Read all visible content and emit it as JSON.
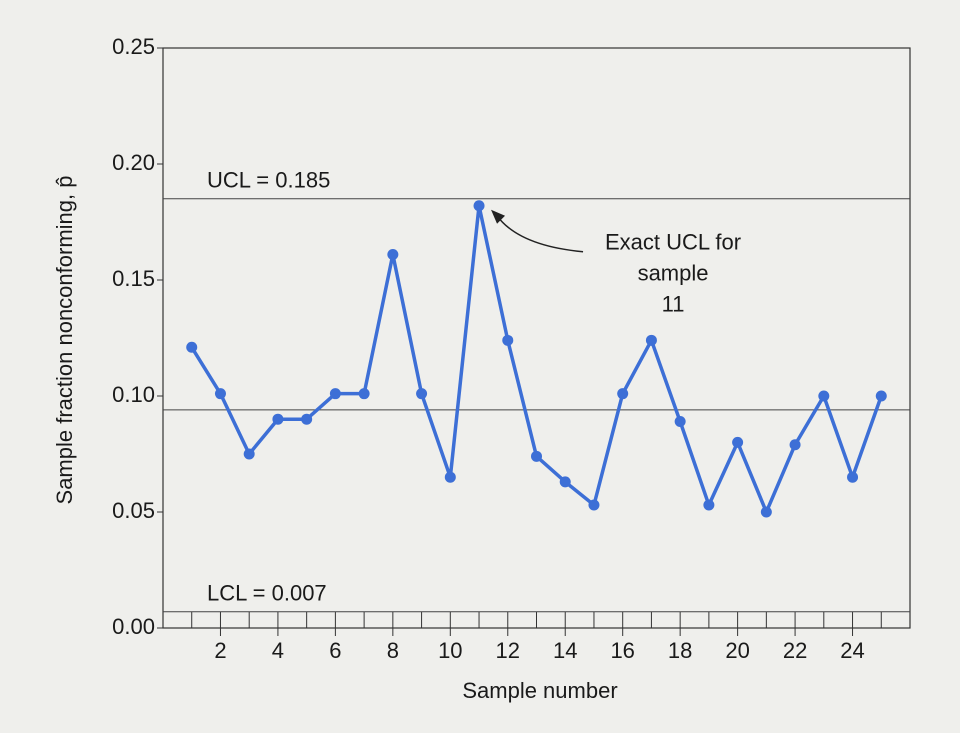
{
  "chart_data": {
    "type": "line",
    "x_label": "Sample number",
    "y_label": "Sample fraction nonconforming, p̂",
    "x": [
      1,
      2,
      3,
      4,
      5,
      6,
      7,
      8,
      9,
      10,
      11,
      12,
      13,
      14,
      15,
      16,
      17,
      18,
      19,
      20,
      21,
      22,
      23,
      24,
      25
    ],
    "series": [
      {
        "color": "#3d6fd6",
        "values": [
          0.121,
          0.101,
          0.075,
          0.09,
          0.09,
          0.101,
          0.101,
          0.161,
          0.101,
          0.065,
          0.182,
          0.124,
          0.074,
          0.063,
          0.053,
          0.101,
          0.124,
          0.089,
          0.053,
          0.08,
          0.05,
          0.079,
          0.1,
          0.065,
          0.1
        ]
      }
    ],
    "xlim": [
      0,
      26
    ],
    "xticks": [
      2,
      4,
      6,
      8,
      10,
      12,
      14,
      16,
      18,
      20,
      22,
      24
    ],
    "xminorticks": [
      1,
      2,
      3,
      4,
      5,
      6,
      7,
      8,
      9,
      10,
      11,
      12,
      13,
      14,
      15,
      16,
      17,
      18,
      19,
      20,
      21,
      22,
      23,
      24,
      25
    ],
    "ylim": [
      0,
      0.25
    ],
    "yticks": [
      {
        "value": 0,
        "label": "0.00"
      },
      0.05,
      {
        "value": 0.1,
        "label": "0.10"
      },
      0.15,
      {
        "value": 0.2,
        "label": "0.20"
      },
      0.25
    ],
    "control_lines": [
      {
        "value": 0.185,
        "label": "UCL = 0.185"
      },
      {
        "value": 0.094
      },
      {
        "value": 0.007,
        "label": "LCL = 0.007"
      }
    ],
    "annotation": {
      "lines": [
        "Exact UCL for",
        "sample",
        "11"
      ],
      "x": 11,
      "y": 0.182
    }
  }
}
